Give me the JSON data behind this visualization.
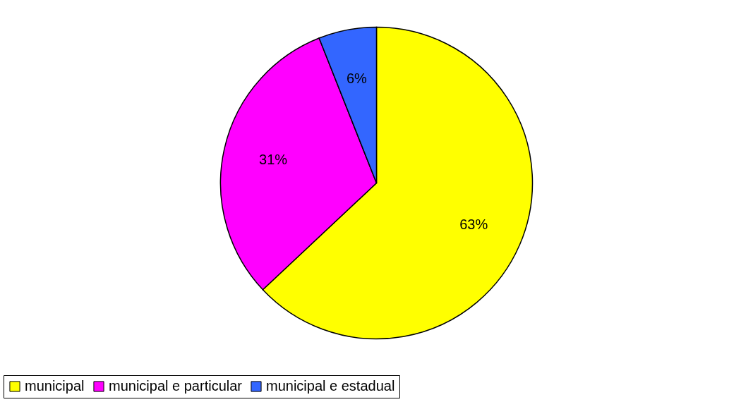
{
  "chart_data": {
    "type": "pie",
    "categories": [
      "municipal",
      "municipal e particular",
      "municipal e estadual"
    ],
    "values": [
      63,
      31,
      6
    ],
    "colors": [
      "#ffff00",
      "#ff00ff",
      "#3366ff"
    ],
    "value_labels": [
      "63%",
      "31%",
      "6%"
    ],
    "legend": "bottom"
  }
}
